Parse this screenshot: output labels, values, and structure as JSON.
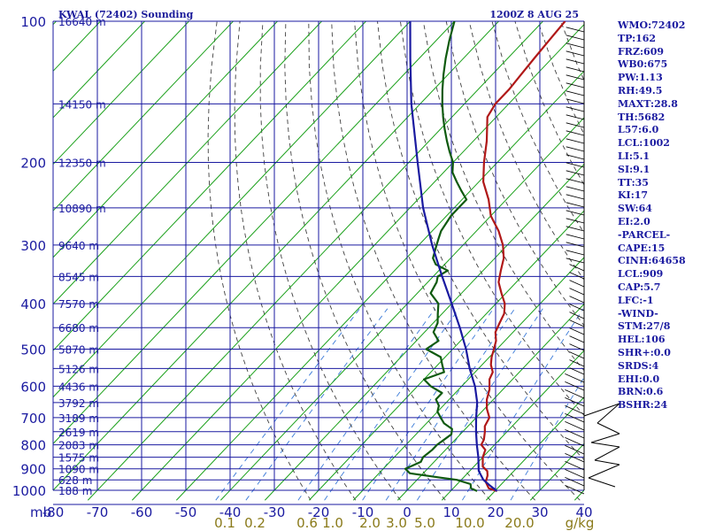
{
  "header": {
    "station": "KWAL (72402) Sounding",
    "time": "1200Z  8 AUG 25"
  },
  "chart_data": {
    "type": "line",
    "xlabel": "",
    "ylabel": "mb",
    "pressure_levels": [
      100,
      200,
      300,
      400,
      500,
      600,
      700,
      800,
      900,
      1000
    ],
    "temp_ticks": [
      -80,
      -70,
      -60,
      -50,
      -40,
      -30,
      -20,
      -10,
      0,
      10,
      20,
      30,
      40
    ],
    "temp_tick_labels": [
      "-80",
      "-70",
      "-60",
      "-50",
      "-40",
      "-30",
      "-20",
      "-10",
      "0",
      "10",
      "20",
      "30",
      "40"
    ],
    "mixing_ratio_labels": [
      "0.1",
      "0.2",
      "0.6",
      "1.0",
      "2.0",
      "3.0",
      "5.0",
      "10.0",
      "20.0",
      "g/kg"
    ],
    "xlim": [
      -80,
      40
    ],
    "ylim": [
      1000,
      100
    ],
    "height_labels": [
      {
        "p": 100,
        "label": "16640 m"
      },
      {
        "p": 150,
        "label": "14150 m"
      },
      {
        "p": 200,
        "label": "12350 m"
      },
      {
        "p": 250,
        "label": "10890 m"
      },
      {
        "p": 300,
        "label": "9640 m"
      },
      {
        "p": 350,
        "label": "8545 m"
      },
      {
        "p": 400,
        "label": "7570 m"
      },
      {
        "p": 450,
        "label": "6680 m"
      },
      {
        "p": 500,
        "label": "5870 m"
      },
      {
        "p": 550,
        "label": "5126 m"
      },
      {
        "p": 600,
        "label": "4436 m"
      },
      {
        "p": 650,
        "label": "3792 m"
      },
      {
        "p": 700,
        "label": "3189 m"
      },
      {
        "p": 750,
        "label": "2619 m"
      },
      {
        "p": 800,
        "label": "2083 m"
      },
      {
        "p": 850,
        "label": "1575 m"
      },
      {
        "p": 900,
        "label": "1090 m"
      },
      {
        "p": 950,
        "label": "628 m"
      },
      {
        "p": 1000,
        "label": "188 m"
      }
    ],
    "series": [
      {
        "color": "#b01818",
        "points": [
          [
            1004,
            20.5
          ],
          [
            990,
            18
          ],
          [
            960,
            16
          ],
          [
            930,
            15
          ],
          [
            910,
            14
          ],
          [
            890,
            12
          ],
          [
            870,
            11
          ],
          [
            850,
            10
          ],
          [
            820,
            9
          ],
          [
            800,
            7
          ],
          [
            780,
            6.5
          ],
          [
            750,
            5
          ],
          [
            730,
            3.8
          ],
          [
            700,
            3
          ],
          [
            670,
            0.5
          ],
          [
            640,
            -1.5
          ],
          [
            610,
            -3
          ],
          [
            580,
            -5.2
          ],
          [
            560,
            -6
          ],
          [
            540,
            -8
          ],
          [
            520,
            -9.5
          ],
          [
            500,
            -10.7
          ],
          [
            480,
            -12
          ],
          [
            460,
            -14
          ],
          [
            440,
            -15
          ],
          [
            420,
            -16
          ],
          [
            400,
            -18
          ],
          [
            380,
            -21
          ],
          [
            360,
            -24
          ],
          [
            340,
            -26
          ],
          [
            320,
            -28
          ],
          [
            300,
            -31
          ],
          [
            280,
            -35
          ],
          [
            260,
            -40
          ],
          [
            240,
            -44
          ],
          [
            220,
            -49
          ],
          [
            200,
            -53
          ],
          [
            180,
            -57
          ],
          [
            160,
            -62
          ],
          [
            150,
            -63
          ],
          [
            140,
            -63
          ],
          [
            130,
            -63.5
          ],
          [
            120,
            -64
          ],
          [
            110,
            -64.5
          ],
          [
            100,
            -65
          ]
        ]
      },
      {
        "color": "#0f5a0f",
        "points": [
          [
            1004,
            16
          ],
          [
            990,
            14
          ],
          [
            970,
            13
          ],
          [
            950,
            9
          ],
          [
            940,
            5
          ],
          [
            920,
            -3
          ],
          [
            900,
            -5
          ],
          [
            870,
            -3
          ],
          [
            850,
            -3.5
          ],
          [
            820,
            -3
          ],
          [
            800,
            -3
          ],
          [
            780,
            -2.5
          ],
          [
            760,
            -2
          ],
          [
            740,
            -3
          ],
          [
            720,
            -6
          ],
          [
            700,
            -8
          ],
          [
            680,
            -10
          ],
          [
            660,
            -11
          ],
          [
            640,
            -13
          ],
          [
            620,
            -13
          ],
          [
            600,
            -17
          ],
          [
            580,
            -20
          ],
          [
            560,
            -17
          ],
          [
            540,
            -19
          ],
          [
            520,
            -21
          ],
          [
            500,
            -26
          ],
          [
            480,
            -25
          ],
          [
            460,
            -28
          ],
          [
            440,
            -29
          ],
          [
            420,
            -31
          ],
          [
            400,
            -33
          ],
          [
            380,
            -37
          ],
          [
            360,
            -38
          ],
          [
            350,
            -39
          ],
          [
            340,
            -38
          ],
          [
            330,
            -42
          ],
          [
            320,
            -44
          ],
          [
            300,
            -46
          ],
          [
            290,
            -47
          ],
          [
            280,
            -48
          ],
          [
            260,
            -49
          ],
          [
            250,
            -49
          ],
          [
            240,
            -49
          ],
          [
            230,
            -52
          ],
          [
            220,
            -55
          ],
          [
            210,
            -58
          ],
          [
            200,
            -60
          ],
          [
            190,
            -63
          ],
          [
            180,
            -66
          ],
          [
            170,
            -69
          ],
          [
            160,
            -72
          ],
          [
            150,
            -75
          ],
          [
            140,
            -78
          ],
          [
            130,
            -81
          ],
          [
            120,
            -84
          ],
          [
            110,
            -87
          ],
          [
            100,
            -90
          ]
        ]
      },
      {
        "color": "#1a1aa0",
        "points": [
          [
            1004,
            20.5
          ],
          [
            980,
            18
          ],
          [
            950,
            15
          ],
          [
            909,
            12
          ],
          [
            850,
            9
          ],
          [
            800,
            6
          ],
          [
            750,
            3
          ],
          [
            700,
            0
          ],
          [
            650,
            -3
          ],
          [
            600,
            -7
          ],
          [
            550,
            -12
          ],
          [
            500,
            -17
          ],
          [
            450,
            -23
          ],
          [
            400,
            -30
          ],
          [
            350,
            -38
          ],
          [
            300,
            -47
          ],
          [
            250,
            -57
          ],
          [
            200,
            -68
          ],
          [
            150,
            -82
          ],
          [
            120,
            -92
          ],
          [
            100,
            -100
          ]
        ]
      }
    ]
  },
  "indices": [
    "WMO:72402",
    "TP:162",
    "FRZ:609",
    "WB0:675",
    "PW:1.13",
    "RH:49.5",
    "MAXT:28.8",
    "TH:5682",
    "L57:6.0",
    "LCL:1002",
    "LI:5.1",
    "SI:9.1",
    "TT:35",
    "KI:17",
    "SW:64",
    "EI:2.0",
    "-PARCEL-",
    "CAPE:15",
    "CINH:64658",
    "LCL:909",
    "CAP:5.7",
    "LFC:-1",
    "-WIND-",
    "STM:27/8",
    "HEL:106",
    "SHR+:0.0",
    "SRDS:4",
    "EHI:0.0",
    "BRN:0.6",
    "BSHR:24"
  ],
  "colors": {
    "grid": "#1a1aa0",
    "isotherm": "#1aa01a",
    "dry_adiabat": "#404040",
    "mixing": "#3a7ad8",
    "temperature": "#b01818",
    "dewpoint": "#0f5a0f",
    "parcel": "#1a1aa0",
    "mixing_label": "#8a7a1a"
  }
}
